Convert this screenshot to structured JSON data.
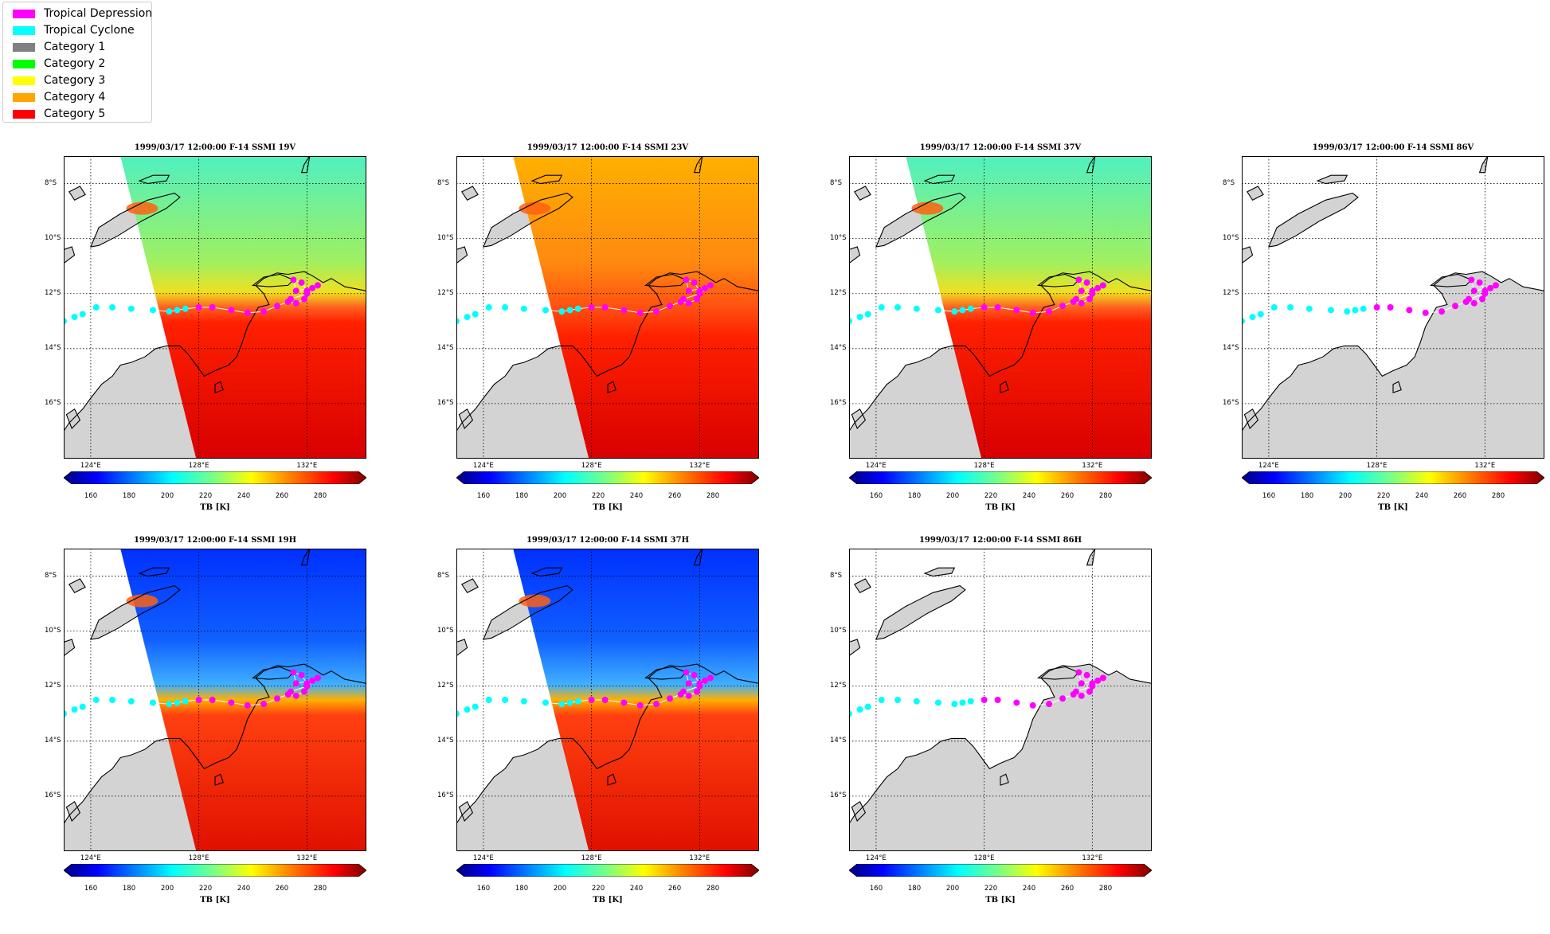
{
  "legend": [
    {
      "label": "Tropical Depression",
      "color": "#ff00ff"
    },
    {
      "label": "Tropical Cyclone",
      "color": "#00ffff"
    },
    {
      "label": "Category 1",
      "color": "#808080"
    },
    {
      "label": "Category 2",
      "color": "#00ff00"
    },
    {
      "label": "Category 3",
      "color": "#ffff00"
    },
    {
      "label": "Category 4",
      "color": "#ffa500"
    },
    {
      "label": "Category 5",
      "color": "#ff0000"
    }
  ],
  "panels": [
    {
      "title": "1999/03/17 12:00:00  F-14 SSMI 19V",
      "channel": "19V",
      "swath": true,
      "fill": "warm-v"
    },
    {
      "title": "1999/03/17 12:00:00  F-14 SSMI 23V",
      "channel": "23V",
      "swath": true,
      "fill": "hot"
    },
    {
      "title": "1999/03/17 12:00:00  F-14 SSMI 37V",
      "channel": "37V",
      "swath": true,
      "fill": "warm-v"
    },
    {
      "title": "1999/03/17 12:00:00  F-14 SSMI 86V",
      "channel": "86V",
      "swath": false,
      "fill": "none"
    },
    {
      "title": "1999/03/17 12:00:00  F-14 SSMI 19H",
      "channel": "19H",
      "swath": true,
      "fill": "cold-h"
    },
    {
      "title": "1999/03/17 12:00:00  F-14 SSMI 37H",
      "channel": "37H",
      "swath": true,
      "fill": "cold-h"
    },
    {
      "title": "1999/03/17 12:00:00  F-14 SSMI 86H",
      "channel": "86H",
      "swath": false,
      "fill": "none"
    }
  ],
  "lat_ticks": [
    "8°S",
    "10°S",
    "12°S",
    "14°S",
    "16°S"
  ],
  "lon_ticks": [
    "124°E",
    "128°E",
    "132°E"
  ],
  "colorbar": {
    "ticks": [
      "160",
      "180",
      "200",
      "220",
      "240",
      "260",
      "280"
    ],
    "label": "TB [K]",
    "range": [
      150,
      300
    ]
  },
  "track": {
    "points": [
      {
        "lon": 123.0,
        "lat": -13.0,
        "cls": "TC"
      },
      {
        "lon": 123.4,
        "lat": -12.85,
        "cls": "TC"
      },
      {
        "lon": 123.7,
        "lat": -12.75,
        "cls": "TC"
      },
      {
        "lon": 124.2,
        "lat": -12.5,
        "cls": "TC"
      },
      {
        "lon": 124.8,
        "lat": -12.5,
        "cls": "TC"
      },
      {
        "lon": 125.5,
        "lat": -12.55,
        "cls": "TC"
      },
      {
        "lon": 126.3,
        "lat": -12.6,
        "cls": "TC"
      },
      {
        "lon": 126.9,
        "lat": -12.65,
        "cls": "TC"
      },
      {
        "lon": 127.2,
        "lat": -12.6,
        "cls": "TC"
      },
      {
        "lon": 127.5,
        "lat": -12.55,
        "cls": "TC"
      },
      {
        "lon": 128.0,
        "lat": -12.5,
        "cls": "TD"
      },
      {
        "lon": 128.5,
        "lat": -12.5,
        "cls": "TD"
      },
      {
        "lon": 129.2,
        "lat": -12.6,
        "cls": "TD"
      },
      {
        "lon": 129.8,
        "lat": -12.7,
        "cls": "TD"
      },
      {
        "lon": 130.4,
        "lat": -12.65,
        "cls": "TD"
      },
      {
        "lon": 130.9,
        "lat": -12.45,
        "cls": "TD"
      },
      {
        "lon": 131.3,
        "lat": -12.3,
        "cls": "TD"
      },
      {
        "lon": 131.6,
        "lat": -12.35,
        "cls": "TD"
      },
      {
        "lon": 131.9,
        "lat": -12.2,
        "cls": "TD"
      },
      {
        "lon": 132.0,
        "lat": -11.9,
        "cls": "TD"
      },
      {
        "lon": 131.8,
        "lat": -11.6,
        "cls": "TD"
      },
      {
        "lon": 131.5,
        "lat": -11.5,
        "cls": "TD"
      },
      {
        "lon": 131.6,
        "lat": -11.9,
        "cls": "TD"
      },
      {
        "lon": 132.2,
        "lat": -11.8,
        "cls": "TD"
      },
      {
        "lon": 132.4,
        "lat": -11.7,
        "cls": "TD"
      },
      {
        "lon": 132.0,
        "lat": -12.0,
        "cls": "TD"
      },
      {
        "lon": 131.4,
        "lat": -12.2,
        "cls": "TD"
      }
    ]
  }
}
